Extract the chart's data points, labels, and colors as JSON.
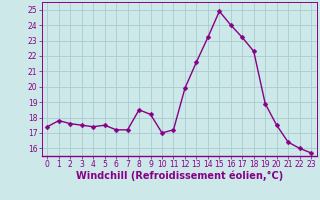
{
  "x": [
    0,
    1,
    2,
    3,
    4,
    5,
    6,
    7,
    8,
    9,
    10,
    11,
    12,
    13,
    14,
    15,
    16,
    17,
    18,
    19,
    20,
    21,
    22,
    23
  ],
  "y": [
    17.4,
    17.8,
    17.6,
    17.5,
    17.4,
    17.5,
    17.2,
    17.2,
    18.5,
    18.2,
    17.0,
    17.2,
    19.9,
    21.6,
    23.2,
    24.9,
    24.0,
    23.2,
    22.3,
    18.9,
    17.5,
    16.4,
    16.0,
    15.7
  ],
  "line_color": "#880088",
  "marker_color": "#880088",
  "bg_color": "#cce8e8",
  "grid_color": "#aacccc",
  "xlabel": "Windchill (Refroidissement éolien,°C)",
  "xlabel_color": "#880088",
  "ylim": [
    15.5,
    25.5
  ],
  "xlim": [
    -0.5,
    23.5
  ],
  "yticks": [
    16,
    17,
    18,
    19,
    20,
    21,
    22,
    23,
    24,
    25
  ],
  "xticks": [
    0,
    1,
    2,
    3,
    4,
    5,
    6,
    7,
    8,
    9,
    10,
    11,
    12,
    13,
    14,
    15,
    16,
    17,
    18,
    19,
    20,
    21,
    22,
    23
  ],
  "tick_color": "#880088",
  "tick_fontsize": 5.5,
  "xlabel_fontsize": 7.0,
  "line_width": 1.0,
  "marker_size": 2.5
}
